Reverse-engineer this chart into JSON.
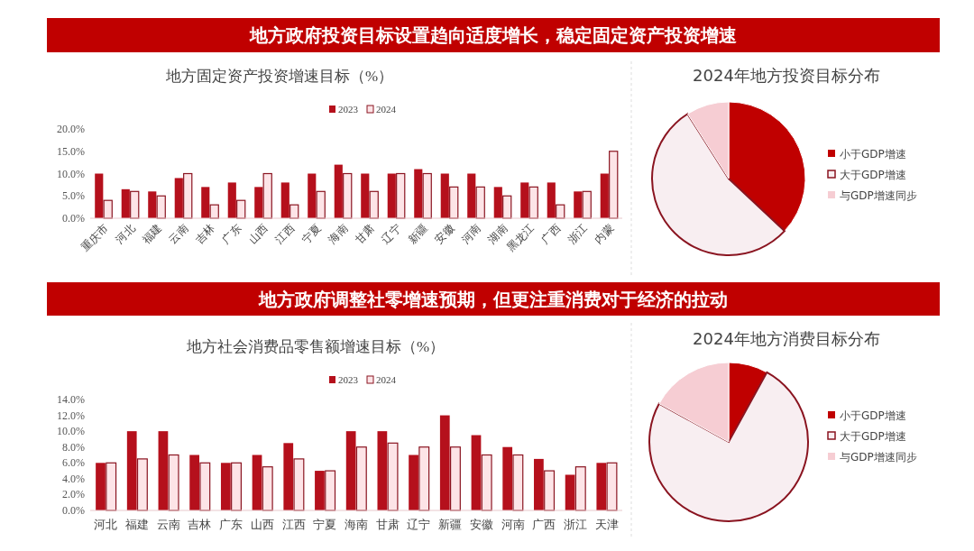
{
  "chart_data": [
    {
      "type": "bar",
      "title": "地方政府投资目标设置趋向适度增长，稳定固定资产投资增速",
      "subtitle": "地方固定资产投资增速目标（%）",
      "categories": [
        "重庆市",
        "河北",
        "福建",
        "云南",
        "吉林",
        "广东",
        "山西",
        "江西",
        "宁夏",
        "海南",
        "甘肃",
        "辽宁",
        "新疆",
        "安徽",
        "河南",
        "湖南",
        "黑龙江",
        "广西",
        "浙江",
        "内蒙"
      ],
      "series": [
        {
          "name": "2023",
          "color": "#b5101c",
          "values": [
            10,
            6.5,
            6,
            9,
            7,
            8,
            7,
            8,
            10,
            12,
            10,
            10,
            11,
            10,
            10,
            7,
            8,
            8,
            6,
            10
          ]
        },
        {
          "name": "2024",
          "color": "#fde4e7",
          "values": [
            4,
            6,
            5,
            10,
            3,
            4,
            10,
            3,
            6,
            10,
            6,
            10,
            10,
            7,
            7,
            5,
            7,
            3,
            6,
            15
          ]
        }
      ],
      "ylim": [
        0,
        20
      ],
      "yticks": [
        {
          "value": 0,
          "label": "0.0%"
        },
        {
          "value": 5,
          "label": "5.0%"
        },
        {
          "value": 10,
          "label": "10.0%"
        },
        {
          "value": 15,
          "label": "15.0%"
        },
        {
          "value": 20,
          "label": "20.0%"
        }
      ],
      "legend": "top"
    },
    {
      "type": "pie",
      "title": "2024年地方投资目标分布",
      "categories": [
        "小于GDP增速",
        "大于GDP增速",
        "与GDP增速同步"
      ],
      "values": [
        37,
        54,
        9
      ],
      "colors": [
        "#c00000",
        "#f8eef1",
        "#f6cdd3"
      ],
      "legend": "right"
    },
    {
      "type": "bar",
      "title": "地方政府调整社零增速预期，但更注重消费对于经济的拉动",
      "subtitle": "地方社会消费品零售额增速目标（%）",
      "categories": [
        "河北",
        "福建",
        "云南",
        "吉林",
        "广东",
        "山西",
        "江西",
        "宁夏",
        "海南",
        "甘肃",
        "辽宁",
        "新疆",
        "安徽",
        "河南",
        "广西",
        "浙江",
        "天津"
      ],
      "series": [
        {
          "name": "2023",
          "color": "#b5101c",
          "values": [
            6,
            10,
            10,
            7,
            6,
            7,
            8.5,
            5,
            10,
            10,
            7,
            12,
            9.5,
            8,
            6.5,
            4.5,
            6
          ]
        },
        {
          "name": "2024",
          "color": "#fde4e7",
          "values": [
            6,
            6.5,
            7,
            6,
            6,
            5.5,
            6.5,
            5,
            8,
            8.5,
            8,
            8,
            7,
            7,
            5,
            5.5,
            6
          ]
        }
      ],
      "ylim": [
        0,
        14
      ],
      "yticks": [
        {
          "value": 0,
          "label": "0.0%"
        },
        {
          "value": 2,
          "label": "2.0%"
        },
        {
          "value": 4,
          "label": "4.0%"
        },
        {
          "value": 6,
          "label": "6.0%"
        },
        {
          "value": 8,
          "label": "8.0%"
        },
        {
          "value": 10,
          "label": "10.0%"
        },
        {
          "value": 12,
          "label": "12.0%"
        },
        {
          "value": 14,
          "label": "14.0%"
        }
      ],
      "legend": "top"
    },
    {
      "type": "pie",
      "title": "2024年地方消费目标分布",
      "categories": [
        "小于GDP增速",
        "大于GDP增速",
        "与GDP增速同步"
      ],
      "values": [
        8,
        75,
        17
      ],
      "colors": [
        "#c00000",
        "#f8eef1",
        "#f6cdd3"
      ],
      "legend": "right"
    }
  ]
}
